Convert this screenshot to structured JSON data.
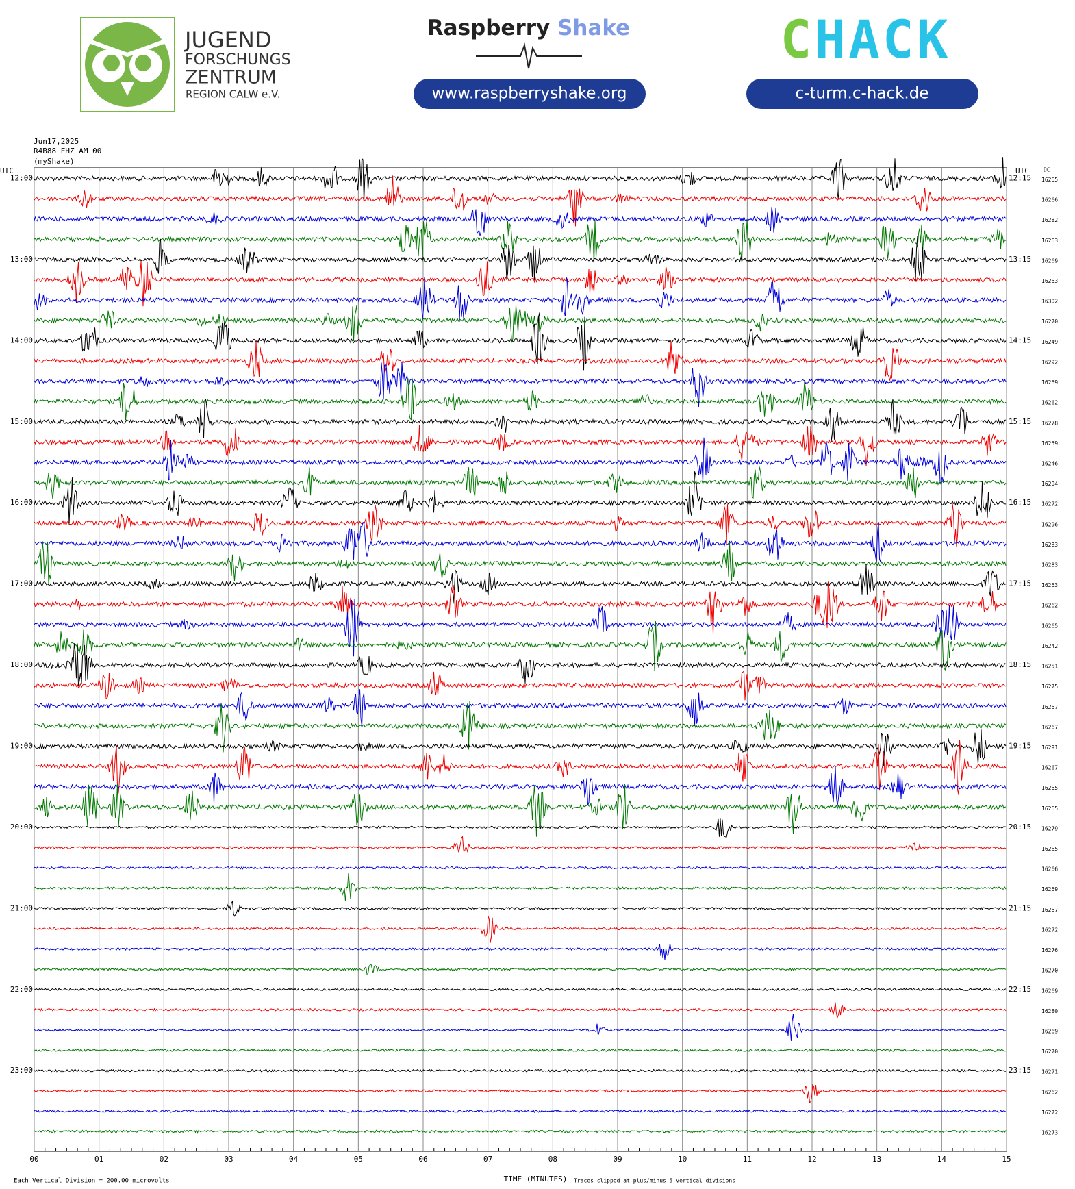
{
  "header": {
    "logo_lines": [
      "JUGEND",
      "FORSCHUNGS",
      "ZENTRUM",
      "REGION CALW e.V."
    ],
    "raspberry": "Raspberry",
    "shake": "Shake",
    "raspberry_url": "www.raspberryshake.org",
    "chack_c": "C",
    "chack_hack": "HACK",
    "chack_url": "c-turm.c-hack.de"
  },
  "station": {
    "date": "Jun17,2025",
    "channel": "R4B88 EHZ AM 00",
    "name": "(myShake)"
  },
  "plot": {
    "utc_left": "UTC",
    "utc_right": "UTC",
    "dc_head": "DC",
    "left_labels": [
      "12:00",
      "13:00",
      "14:00",
      "15:00",
      "16:00",
      "17:00",
      "18:00",
      "19:00",
      "20:00",
      "21:00",
      "22:00",
      "23:00"
    ],
    "right_labels": [
      "12:15",
      "13:15",
      "14:15",
      "15:15",
      "16:15",
      "17:15",
      "18:15",
      "19:15",
      "20:15",
      "21:15",
      "22:15",
      "23:15"
    ],
    "dc_values": [
      16265,
      16266,
      16282,
      16263,
      16269,
      16263,
      16302,
      16270,
      16249,
      16292,
      16269,
      16262,
      16278,
      16259,
      16246,
      16294,
      16272,
      16296,
      16283,
      16283,
      16263,
      16262,
      16265,
      16242,
      16251,
      16275,
      16267,
      16267,
      16291,
      16267,
      16265,
      16265,
      16279,
      16265,
      16266,
      16269,
      16267,
      16272,
      16276,
      16270,
      16269,
      16280,
      16269,
      16270,
      16271,
      16262,
      16272,
      16273
    ],
    "x_ticks": [
      "00",
      "01",
      "02",
      "03",
      "04",
      "05",
      "06",
      "07",
      "08",
      "09",
      "10",
      "11",
      "12",
      "13",
      "14",
      "15"
    ],
    "x_label": "TIME (MINUTES)",
    "footer_left": "Each Vertical Division =  200.00 microvolts",
    "footer_right": "Traces clipped at plus/minus 5 vertical divisions"
  }
}
